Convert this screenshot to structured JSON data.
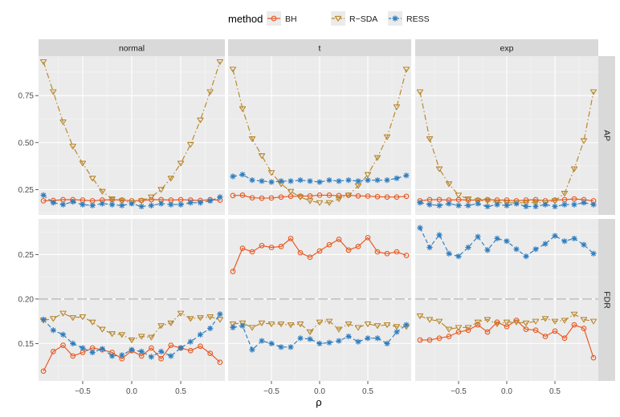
{
  "chart_data": {
    "type": "line",
    "facet_rows": [
      "AP",
      "FDR"
    ],
    "facet_cols": [
      "normal",
      "t",
      "exp"
    ],
    "legend": {
      "title": "method",
      "position": "top",
      "entries": [
        {
          "name": "BH",
          "color": "#e8571f",
          "marker": "circle",
          "linetype": "solid"
        },
        {
          "name": "R−SDA",
          "color": "#b8862b",
          "marker": "triangle-down",
          "linetype": "dotdash"
        },
        {
          "name": "RESS",
          "color": "#2e7dbf",
          "marker": "asterisk",
          "linetype": "dashed"
        }
      ]
    },
    "xlabel": "ρ",
    "x_ticks": [
      -0.5,
      0.0,
      0.5
    ],
    "x_tick_labels": [
      "−0.5",
      "0.0",
      "0.5"
    ],
    "xlim": [
      -0.95,
      0.95
    ],
    "x": [
      -0.9,
      -0.8,
      -0.7,
      -0.6,
      -0.5,
      -0.4,
      -0.3,
      -0.2,
      -0.1,
      0.0,
      0.1,
      0.2,
      0.3,
      0.4,
      0.5,
      0.6,
      0.7,
      0.8,
      0.9
    ],
    "rows": {
      "AP": {
        "ylim": [
          0.115,
          0.96
        ],
        "y_ticks": [
          0.25,
          0.5,
          0.75
        ],
        "y_tick_labels": [
          "0.25",
          "0.50",
          "0.75"
        ],
        "hline": null
      },
      "FDR": {
        "ylim": [
          0.108,
          0.29
        ],
        "y_ticks": [
          0.15,
          0.2,
          0.25
        ],
        "y_tick_labels": [
          "0.15",
          "0.20",
          "0.25"
        ],
        "hline": 0.2
      }
    },
    "panels": [
      {
        "row": "AP",
        "col": "normal",
        "series": [
          {
            "name": "BH",
            "values": [
              0.19,
              0.192,
              0.196,
              0.196,
              0.194,
              0.19,
              0.194,
              0.196,
              0.194,
              0.19,
              0.192,
              0.196,
              0.196,
              0.194,
              0.196,
              0.194,
              0.192,
              0.196,
              0.194
            ]
          },
          {
            "name": "R−SDA",
            "values": [
              0.93,
              0.77,
              0.61,
              0.48,
              0.39,
              0.31,
              0.24,
              0.2,
              0.19,
              0.18,
              0.19,
              0.21,
              0.25,
              0.31,
              0.39,
              0.49,
              0.62,
              0.77,
              0.93
            ]
          },
          {
            "name": "RESS",
            "values": [
              0.22,
              0.18,
              0.17,
              0.185,
              0.17,
              0.165,
              0.175,
              0.17,
              0.165,
              0.175,
              0.16,
              0.165,
              0.175,
              0.17,
              0.17,
              0.18,
              0.18,
              0.19,
              0.21
            ]
          }
        ]
      },
      {
        "row": "AP",
        "col": "t",
        "series": [
          {
            "name": "BH",
            "values": [
              0.218,
              0.22,
              0.206,
              0.204,
              0.205,
              0.21,
              0.214,
              0.215,
              0.216,
              0.22,
              0.22,
              0.218,
              0.22,
              0.216,
              0.215,
              0.212,
              0.21,
              0.21,
              0.214
            ]
          },
          {
            "name": "R−SDA",
            "values": [
              0.89,
              0.68,
              0.52,
              0.43,
              0.34,
              0.28,
              0.24,
              0.21,
              0.19,
              0.18,
              0.18,
              0.2,
              0.22,
              0.27,
              0.33,
              0.42,
              0.53,
              0.69,
              0.89
            ]
          },
          {
            "name": "RESS",
            "values": [
              0.32,
              0.33,
              0.3,
              0.295,
              0.29,
              0.295,
              0.295,
              0.3,
              0.295,
              0.29,
              0.3,
              0.295,
              0.3,
              0.295,
              0.3,
              0.3,
              0.3,
              0.31,
              0.325
            ]
          }
        ]
      },
      {
        "row": "AP",
        "col": "exp",
        "series": [
          {
            "name": "BH",
            "values": [
              0.19,
              0.196,
              0.196,
              0.194,
              0.196,
              0.194,
              0.194,
              0.196,
              0.194,
              0.194,
              0.19,
              0.194,
              0.196,
              0.19,
              0.194,
              0.196,
              0.2,
              0.196,
              0.19
            ]
          },
          {
            "name": "R−SDA",
            "values": [
              0.77,
              0.52,
              0.36,
              0.28,
              0.22,
              0.2,
              0.19,
              0.19,
              0.18,
              0.18,
              0.18,
              0.18,
              0.18,
              0.18,
              0.19,
              0.23,
              0.36,
              0.51,
              0.77
            ]
          },
          {
            "name": "RESS",
            "values": [
              0.18,
              0.17,
              0.165,
              0.175,
              0.165,
              0.165,
              0.175,
              0.16,
              0.17,
              0.165,
              0.175,
              0.16,
              0.16,
              0.17,
              0.16,
              0.17,
              0.17,
              0.18,
              0.17
            ]
          }
        ]
      },
      {
        "row": "FDR",
        "col": "normal",
        "series": [
          {
            "name": "BH",
            "values": [
              0.119,
              0.141,
              0.148,
              0.136,
              0.14,
              0.145,
              0.143,
              0.14,
              0.133,
              0.142,
              0.136,
              0.145,
              0.133,
              0.148,
              0.145,
              0.142,
              0.147,
              0.139,
              0.129
            ]
          },
          {
            "name": "R−SDA",
            "values": [
              0.176,
              0.178,
              0.184,
              0.179,
              0.18,
              0.174,
              0.166,
              0.161,
              0.16,
              0.154,
              0.158,
              0.157,
              0.17,
              0.173,
              0.184,
              0.178,
              0.179,
              0.18,
              0.177
            ]
          },
          {
            "name": "RESS",
            "values": [
              0.177,
              0.165,
              0.16,
              0.15,
              0.145,
              0.14,
              0.144,
              0.136,
              0.137,
              0.143,
              0.141,
              0.135,
              0.141,
              0.136,
              0.145,
              0.152,
              0.16,
              0.167,
              0.183
            ]
          }
        ]
      },
      {
        "row": "FDR",
        "col": "t",
        "series": [
          {
            "name": "BH",
            "values": [
              0.231,
              0.257,
              0.253,
              0.26,
              0.258,
              0.259,
              0.268,
              0.252,
              0.247,
              0.254,
              0.261,
              0.267,
              0.255,
              0.259,
              0.269,
              0.253,
              0.251,
              0.253,
              0.249
            ]
          },
          {
            "name": "R−SDA",
            "values": [
              0.172,
              0.173,
              0.168,
              0.173,
              0.172,
              0.172,
              0.171,
              0.172,
              0.163,
              0.174,
              0.175,
              0.166,
              0.172,
              0.168,
              0.172,
              0.17,
              0.171,
              0.169,
              0.169
            ]
          },
          {
            "name": "RESS",
            "values": [
              0.168,
              0.17,
              0.143,
              0.153,
              0.15,
              0.146,
              0.146,
              0.156,
              0.155,
              0.15,
              0.151,
              0.153,
              0.158,
              0.152,
              0.156,
              0.156,
              0.15,
              0.163,
              0.171
            ]
          }
        ]
      },
      {
        "row": "FDR",
        "col": "exp",
        "series": [
          {
            "name": "BH",
            "values": [
              0.154,
              0.154,
              0.156,
              0.158,
              0.163,
              0.165,
              0.171,
              0.163,
              0.174,
              0.169,
              0.176,
              0.166,
              0.165,
              0.158,
              0.164,
              0.156,
              0.171,
              0.167,
              0.134
            ]
          },
          {
            "name": "R−SDA",
            "values": [
              0.181,
              0.177,
              0.175,
              0.166,
              0.168,
              0.168,
              0.174,
              0.177,
              0.172,
              0.174,
              0.174,
              0.173,
              0.175,
              0.178,
              0.175,
              0.176,
              0.183,
              0.177,
              0.175
            ]
          },
          {
            "name": "RESS",
            "values": [
              0.28,
              0.258,
              0.272,
              0.251,
              0.248,
              0.258,
              0.27,
              0.255,
              0.268,
              0.265,
              0.256,
              0.248,
              0.256,
              0.262,
              0.271,
              0.265,
              0.268,
              0.261,
              0.251
            ]
          }
        ]
      }
    ]
  }
}
